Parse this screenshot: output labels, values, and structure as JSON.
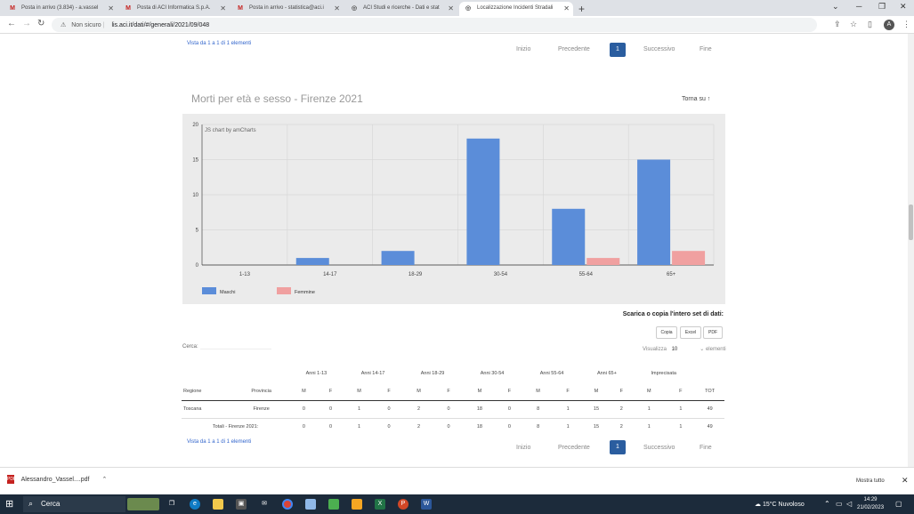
{
  "tabs": [
    {
      "label": "Posta in arrivo (3.834) - a.vassel",
      "icon": "M",
      "active": false
    },
    {
      "label": "Posta di ACI Informatica S.p.A.",
      "icon": "M",
      "active": false
    },
    {
      "label": "Posta in arrivo - statistica@aci.i",
      "icon": "M",
      "active": false
    },
    {
      "label": "ACI Studi e ricerche - Dati e stat",
      "icon": "◎",
      "active": false
    },
    {
      "label": "Localizzazione Incidenti Stradali",
      "icon": "◎",
      "active": true
    }
  ],
  "address": {
    "security": "Non sicuro",
    "url": "lis.aci.it/dati/#/generali/2021/09/048"
  },
  "top_pager": {
    "info": "Vista da 1 a 1 di 1 elementi",
    "first": "Inizio",
    "prev": "Precedente",
    "current": "1",
    "next": "Successivo",
    "last": "Fine"
  },
  "section": {
    "title": "Morti per età e sesso - Firenze 2021",
    "back_to_top": "Torna su ↑"
  },
  "chart_data": {
    "type": "bar",
    "credit": "JS chart by amCharts",
    "categories": [
      "1-13",
      "14-17",
      "18-29",
      "30-54",
      "55-64",
      "65+"
    ],
    "series": [
      {
        "name": "Maschi",
        "values": [
          0,
          1,
          2,
          18,
          8,
          15
        ],
        "color": "#5b8dd9"
      },
      {
        "name": "Femmine",
        "values": [
          0,
          0,
          0,
          0,
          1,
          2
        ],
        "color": "#f0a0a0"
      }
    ],
    "ylim": [
      0,
      20
    ],
    "yticks": [
      0,
      5,
      10,
      15,
      20
    ],
    "grid": true,
    "legend": "bottom-left"
  },
  "download": {
    "title": "Scarica o copia l'intero set di dati:",
    "buttons": [
      "Copia",
      "Excel",
      "PDF"
    ]
  },
  "search": {
    "label": "Cerca:"
  },
  "length": {
    "prefix": "Visualizza",
    "value": "10",
    "suffix": "elementi"
  },
  "table": {
    "group_headers": [
      "Anni 1-13",
      "Anni 14-17",
      "Anni 18-29",
      "Anni 30-54",
      "Anni 55-64",
      "Anni 65+",
      "Imprecisata"
    ],
    "sub_headers": [
      "Regione",
      "Provincia",
      "M",
      "F",
      "M",
      "F",
      "M",
      "F",
      "M",
      "F",
      "M",
      "F",
      "M",
      "F",
      "M",
      "F",
      "TOT"
    ],
    "rows": [
      [
        "Toscana",
        "Firenze",
        "0",
        "0",
        "1",
        "0",
        "2",
        "0",
        "18",
        "0",
        "8",
        "1",
        "15",
        "2",
        "1",
        "1",
        "49"
      ]
    ],
    "footer": [
      "Totali - Firenze 2021:",
      "0",
      "0",
      "1",
      "0",
      "2",
      "0",
      "18",
      "0",
      "8",
      "1",
      "15",
      "2",
      "1",
      "1",
      "49"
    ]
  },
  "bottom_pager": {
    "info": "Vista da 1 a 1 di 1 elementi",
    "first": "Inizio",
    "prev": "Precedente",
    "current": "1",
    "next": "Successivo",
    "last": "Fine"
  },
  "downloads_bar": {
    "file": "Alessandro_Vassel....pdf",
    "show_all": "Mostra tutto"
  },
  "taskbar": {
    "search": "Cerca",
    "weather": "15°C Nuvoloso",
    "time": "14:29",
    "date": "21/02/2023"
  }
}
